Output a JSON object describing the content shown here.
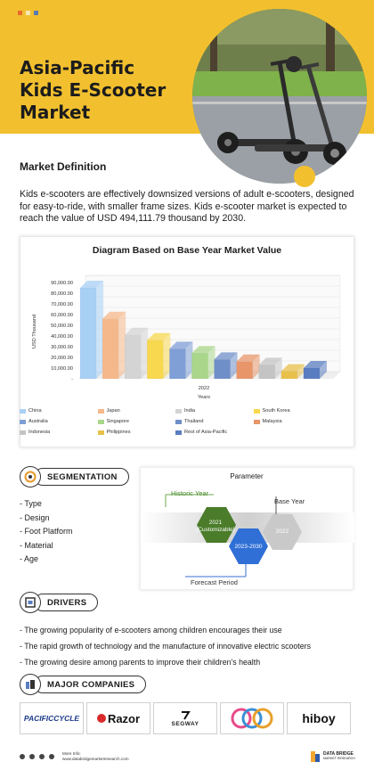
{
  "header": {
    "title_line1": "Asia-Pacific",
    "title_line2": "Kids E-Scooter",
    "title_line3": "Market",
    "accent_color": "#f2c02f",
    "photo": "kids-e-scooter-photo"
  },
  "definition": {
    "heading": "Market Definition",
    "text": "Kids e-scooters are effectively downsized versions of adult e-scooters, designed for easy-to-ride, with smaller frame sizes. Kids e-scooter market is expected to reach the value of USD  494,111.79 thousand by 2030."
  },
  "chart_data": {
    "type": "bar",
    "title": "Diagram Based on Base Year Market Value",
    "ylabel": "USD Thousand",
    "xlabel": "Years",
    "x_category": "2022",
    "ylim": [
      0,
      90000
    ],
    "yticks": [
      "-",
      "10,000.00",
      "20,000.00",
      "30,000.00",
      "40,000.00",
      "50,000.00",
      "60,000.00",
      "70,000.00",
      "80,000.00",
      "90,000.00"
    ],
    "grid": true,
    "legend_position": "bottom",
    "series": [
      {
        "name": "China",
        "value": 85000,
        "color": "#a8d0f5"
      },
      {
        "name": "Japan",
        "value": 56000,
        "color": "#f5b88a"
      },
      {
        "name": "India",
        "value": 41000,
        "color": "#d4d4d4"
      },
      {
        "name": "South Korea",
        "value": 36000,
        "color": "#f8d84e"
      },
      {
        "name": "Australia",
        "value": 28000,
        "color": "#7f9fd6"
      },
      {
        "name": "Singapore",
        "value": 24000,
        "color": "#a9d68a"
      },
      {
        "name": "Thailand",
        "value": 18000,
        "color": "#6f8fc8"
      },
      {
        "name": "Malaysia",
        "value": 16000,
        "color": "#e8956a"
      },
      {
        "name": "Indonesia",
        "value": 13000,
        "color": "#c4c4c4"
      },
      {
        "name": "Philippines",
        "value": 7000,
        "color": "#e8c04a"
      },
      {
        "name": "Rest of Asia-Pacific",
        "value": 10000,
        "color": "#5a7cc0"
      }
    ]
  },
  "segmentation": {
    "heading": "SEGMENTATION",
    "items": [
      "Type",
      "Design",
      "Foot Platform",
      "Material",
      "Age"
    ]
  },
  "parameter": {
    "title": "Parameter",
    "historic_label": "Historic Year",
    "historic_value": "2021\n(Customizable)",
    "forecast_label": "Forecast Period",
    "forecast_value": "2023-2030",
    "base_label": "Base Year",
    "base_value": "2022"
  },
  "drivers": {
    "heading": "DRIVERS",
    "items": [
      "The growing popularity of e-scooters among children encourages their use",
      "The rapid growth of technology and the manufacture of innovative electric scooters",
      "The growing desire among parents to improve their children’s health"
    ]
  },
  "companies": {
    "heading": "MAJOR COMPANIES",
    "logos": [
      "PACIFICCYCLE",
      "Razor",
      "SEGWAY",
      "",
      "hiboy"
    ]
  },
  "footer": {
    "more_info_label": "More Info:",
    "url": "www.databridgemarketresearch.com",
    "brand_line1": "DATA BRIDGE",
    "brand_line2": "MARKET RESEARCH"
  }
}
